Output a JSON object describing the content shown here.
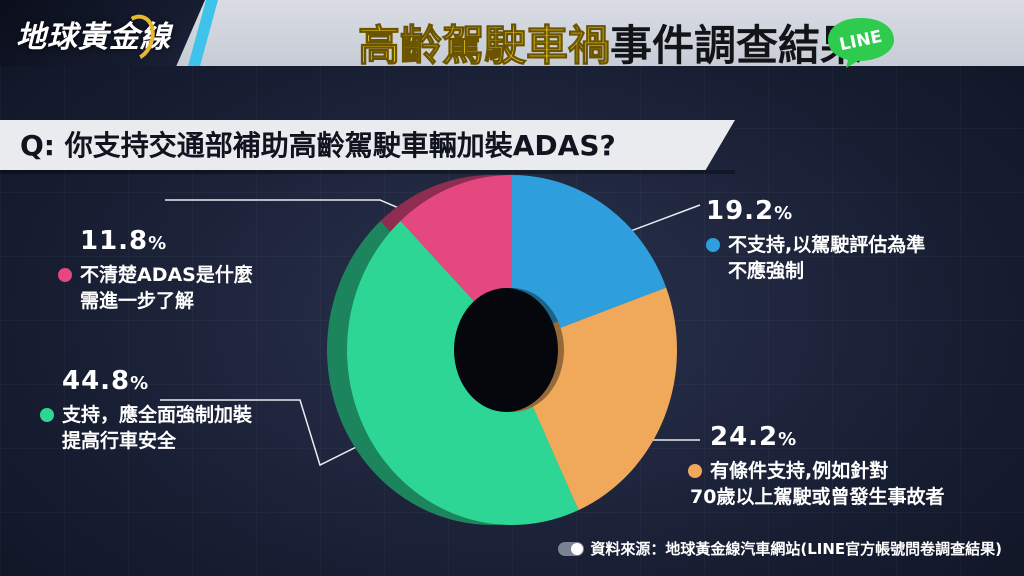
{
  "header": {
    "logo_text": "地球黃金線",
    "title_yellow": "高齡駕駛車禍",
    "title_black": "事件調查結果",
    "line_badge": "LINE"
  },
  "question": "Q: 你支持交通部補助高齡駕駛車輛加裝ADAS?",
  "source": "資料來源：地球黃金線汽車網站(LINE官方帳號問卷調查結果)",
  "colors": {
    "pink": "#e5487f",
    "blue": "#2e9fdc",
    "orange": "#f0a95a",
    "green": "#2ed696"
  },
  "chart_data": {
    "type": "pie",
    "donut": true,
    "slices": [
      {
        "label_line1": "不支持,以駕駛評估為準",
        "label_line2": "不應強制",
        "value": 19.2,
        "pct_text": "19.2",
        "color": "#2e9fdc"
      },
      {
        "label_line1": "有條件支持,例如針對",
        "label_line2": "70歲以上駕駛或曾發生事故者",
        "value": 24.2,
        "pct_text": "24.2",
        "color": "#f0a95a"
      },
      {
        "label_line1": "支持，應全面強制加裝",
        "label_line2": "提高行車安全",
        "value": 44.8,
        "pct_text": "44.8",
        "color": "#2ed696"
      },
      {
        "label_line1": "不清楚ADAS是什麼",
        "label_line2": "需進一步了解",
        "value": 11.8,
        "pct_text": "11.8",
        "color": "#e5487f"
      }
    ],
    "unit": "%"
  }
}
